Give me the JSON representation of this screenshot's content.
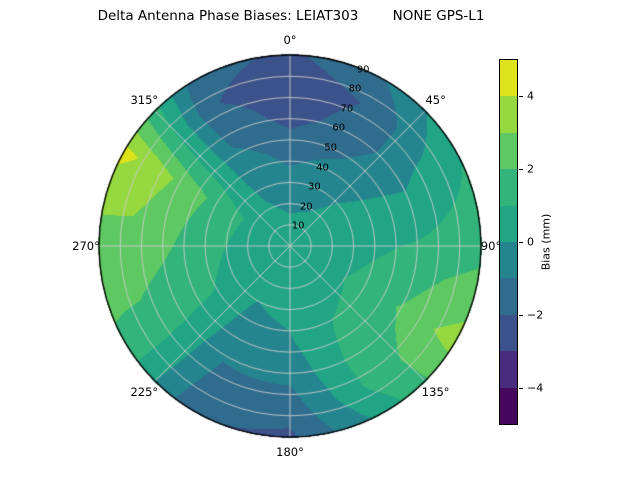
{
  "title": "Delta Antenna Phase Biases: LEIAT303        NONE GPS-L1",
  "polar": {
    "angular_labels": [
      "0°",
      "45°",
      "90°",
      "135°",
      "180°",
      "225°",
      "270°",
      "315°"
    ],
    "radial_labels": [
      "10",
      "20",
      "30",
      "40",
      "50",
      "60",
      "70",
      "80",
      "90"
    ],
    "radial_label_angle_deg": 22.5,
    "grid_color": "#cdcdcd"
  },
  "colorbar": {
    "label": "Bias (mm)",
    "tick_labels": [
      "4",
      "2",
      "0",
      "−2",
      "−4"
    ],
    "tick_values": [
      4,
      2,
      0,
      -2,
      -4
    ]
  },
  "chart_data": {
    "type": "heatmap",
    "projection": "polar",
    "title": "Delta Antenna Phase Biases: LEIAT303        NONE GPS-L1",
    "value_label": "Bias (mm)",
    "colormap": "viridis",
    "vmin": -5,
    "vmax": 5,
    "levels": [
      -5,
      -4,
      -3,
      -2,
      -1,
      0,
      1,
      2,
      3,
      4,
      5
    ],
    "band_colors": [
      "#46085c",
      "#472d7b",
      "#3b528b",
      "#2f6c8e",
      "#25858e",
      "#21a585",
      "#33b47a",
      "#5ec962",
      "#95d840",
      "#dfe319"
    ],
    "azimuth_deg": [
      0,
      30,
      60,
      90,
      120,
      150,
      180,
      210,
      240,
      270,
      300,
      330
    ],
    "zenith_deg": [
      0,
      15,
      30,
      45,
      60,
      75,
      90
    ],
    "bias_mm": [
      [
        0.4,
        0.0,
        -0.6,
        -1.4,
        -2.3,
        -2.7,
        -2.2
      ],
      [
        0.4,
        0.1,
        -0.3,
        -0.9,
        -1.6,
        -1.9,
        -1.0
      ],
      [
        0.4,
        0.3,
        0.2,
        0.0,
        -0.2,
        0.3,
        0.9
      ],
      [
        0.4,
        0.5,
        0.7,
        0.9,
        1.1,
        1.4,
        1.6
      ],
      [
        0.4,
        0.6,
        1.0,
        1.5,
        2.1,
        2.9,
        3.4
      ],
      [
        0.4,
        0.5,
        0.8,
        1.1,
        1.3,
        1.2,
        0.4
      ],
      [
        0.4,
        0.3,
        0.2,
        -0.1,
        -0.7,
        -1.5,
        -2.2
      ],
      [
        0.4,
        0.2,
        0.0,
        -0.4,
        -0.9,
        -1.4,
        -1.9
      ],
      [
        0.4,
        0.4,
        0.7,
        1.1,
        1.4,
        1.7,
        1.9
      ],
      [
        0.4,
        0.6,
        1.0,
        1.6,
        2.2,
        2.6,
        2.4
      ],
      [
        0.4,
        0.6,
        1.2,
        2.0,
        2.8,
        3.7,
        4.3
      ],
      [
        0.4,
        0.2,
        -0.1,
        -0.6,
        -1.3,
        -1.9,
        -1.6
      ]
    ]
  }
}
